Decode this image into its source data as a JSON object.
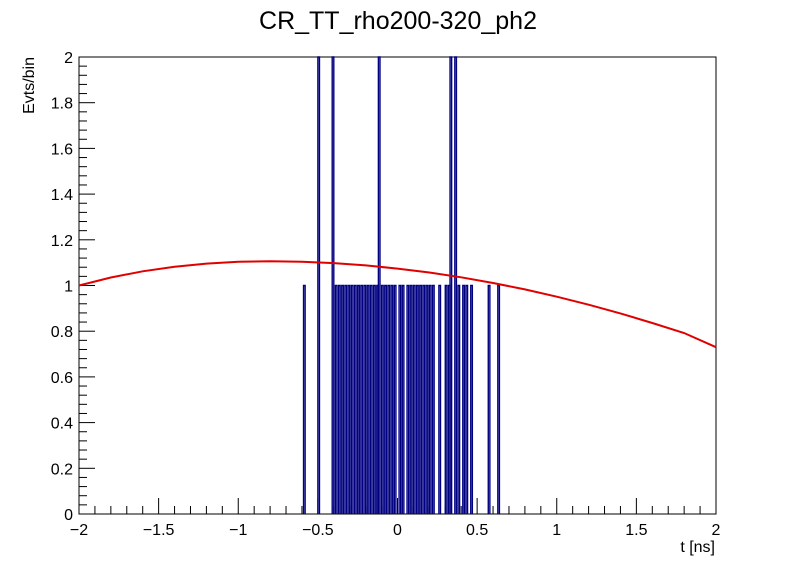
{
  "chart_data": {
    "type": "histogram",
    "title": "CR_TT_rho200-320_ph2",
    "xlabel": "t [ns]",
    "ylabel": "Evts/bin",
    "xlim": [
      -2,
      2
    ],
    "ylim": [
      0,
      2
    ],
    "x_ticks": [
      "-2",
      "-1.5",
      "-1",
      "-0.5",
      "0",
      "0.5",
      "1",
      "1.5",
      "2"
    ],
    "x_tick_values": [
      -2,
      -1.5,
      -1,
      -0.5,
      0,
      0.5,
      1,
      1.5,
      2
    ],
    "y_ticks": [
      "0",
      "0.2",
      "0.4",
      "0.6",
      "0.8",
      "1",
      "1.2",
      "1.4",
      "1.6",
      "1.8",
      "2"
    ],
    "y_tick_values": [
      0,
      0.2,
      0.4,
      0.6,
      0.8,
      1.0,
      1.2,
      1.4,
      1.6,
      1.8,
      2.0
    ],
    "grid": false,
    "legend": "none",
    "histogram": {
      "color": "#000080",
      "bin_width": 0.01,
      "bins": [
        {
          "x": -0.59,
          "y": 1
        },
        {
          "x": -0.5,
          "y": 2
        },
        {
          "x": -0.41,
          "y": 2
        },
        {
          "x": -0.39,
          "y": 1
        },
        {
          "x": -0.37,
          "y": 1
        },
        {
          "x": -0.35,
          "y": 1
        },
        {
          "x": -0.33,
          "y": 1
        },
        {
          "x": -0.31,
          "y": 1
        },
        {
          "x": -0.29,
          "y": 1
        },
        {
          "x": -0.27,
          "y": 1
        },
        {
          "x": -0.25,
          "y": 1
        },
        {
          "x": -0.23,
          "y": 1
        },
        {
          "x": -0.21,
          "y": 1
        },
        {
          "x": -0.19,
          "y": 1
        },
        {
          "x": -0.17,
          "y": 1
        },
        {
          "x": -0.15,
          "y": 1
        },
        {
          "x": -0.13,
          "y": 1
        },
        {
          "x": -0.12,
          "y": 2
        },
        {
          "x": -0.1,
          "y": 1
        },
        {
          "x": -0.08,
          "y": 1
        },
        {
          "x": -0.06,
          "y": 1
        },
        {
          "x": -0.04,
          "y": 1
        },
        {
          "x": -0.02,
          "y": 1
        },
        {
          "x": 0.01,
          "y": 1
        },
        {
          "x": 0.03,
          "y": 1
        },
        {
          "x": 0.06,
          "y": 1
        },
        {
          "x": 0.08,
          "y": 1
        },
        {
          "x": 0.1,
          "y": 1
        },
        {
          "x": 0.12,
          "y": 1
        },
        {
          "x": 0.14,
          "y": 1
        },
        {
          "x": 0.16,
          "y": 1
        },
        {
          "x": 0.18,
          "y": 1
        },
        {
          "x": 0.2,
          "y": 1
        },
        {
          "x": 0.22,
          "y": 1
        },
        {
          "x": 0.26,
          "y": 1
        },
        {
          "x": 0.3,
          "y": 1
        },
        {
          "x": 0.32,
          "y": 1
        },
        {
          "x": 0.33,
          "y": 2
        },
        {
          "x": 0.36,
          "y": 2
        },
        {
          "x": 0.38,
          "y": 1
        },
        {
          "x": 0.41,
          "y": 1
        },
        {
          "x": 0.43,
          "y": 1
        },
        {
          "x": 0.46,
          "y": 1
        },
        {
          "x": 0.57,
          "y": 1
        },
        {
          "x": 0.63,
          "y": 1
        }
      ]
    },
    "fit_curve": {
      "color": "#e00000",
      "points": [
        [
          -2.0,
          1.0
        ],
        [
          -1.8,
          1.035
        ],
        [
          -1.6,
          1.062
        ],
        [
          -1.4,
          1.082
        ],
        [
          -1.2,
          1.096
        ],
        [
          -1.0,
          1.104
        ],
        [
          -0.8,
          1.106
        ],
        [
          -0.6,
          1.104
        ],
        [
          -0.4,
          1.098
        ],
        [
          -0.2,
          1.088
        ],
        [
          0.0,
          1.074
        ],
        [
          0.2,
          1.057
        ],
        [
          0.4,
          1.036
        ],
        [
          0.6,
          1.011
        ],
        [
          0.8,
          0.983
        ],
        [
          1.0,
          0.951
        ],
        [
          1.2,
          0.916
        ],
        [
          1.4,
          0.878
        ],
        [
          1.6,
          0.836
        ],
        [
          1.8,
          0.792
        ],
        [
          2.0,
          0.73
        ]
      ]
    }
  }
}
